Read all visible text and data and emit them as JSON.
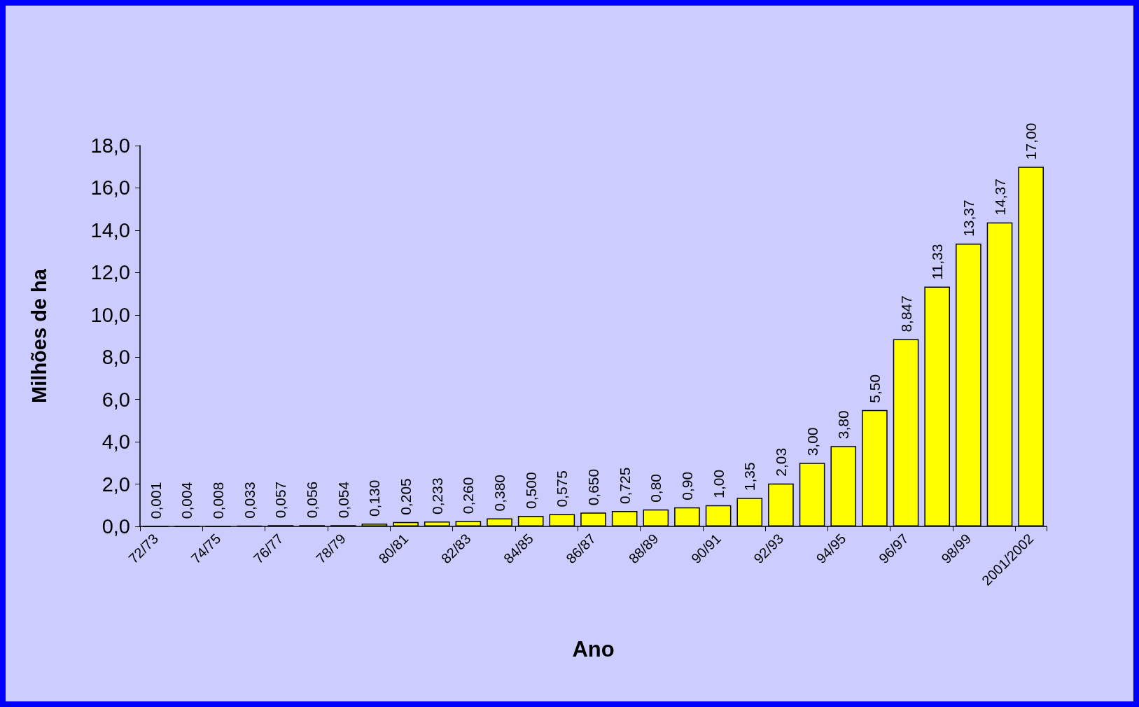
{
  "chart_data": {
    "type": "bar",
    "xlabel": "Ano",
    "ylabel": "Milhões de ha",
    "categories": [
      "72/73",
      null,
      "74/75",
      null,
      "76/77",
      null,
      "78/79",
      null,
      "80/81",
      null,
      "82/83",
      null,
      "84/85",
      null,
      "86/87",
      null,
      "88/89",
      null,
      "90/91",
      null,
      "92/93",
      null,
      "94/95",
      null,
      "96/97",
      null,
      "98/99",
      null,
      "2001/2002"
    ],
    "values": [
      0.001,
      0.004,
      0.008,
      0.033,
      0.057,
      0.056,
      0.054,
      0.13,
      0.205,
      0.233,
      0.26,
      0.38,
      0.5,
      0.575,
      0.65,
      0.725,
      0.8,
      0.9,
      1.0,
      1.35,
      2.03,
      3.0,
      3.8,
      5.5,
      8.847,
      11.33,
      13.37,
      14.37,
      17.0
    ],
    "value_labels": [
      "0,001",
      "0,004",
      "0,008",
      "0,033",
      "0,057",
      "0,056",
      "0,054",
      "0,130",
      "0,205",
      "0,233",
      "0,260",
      "0,380",
      "0,500",
      "0,575",
      "0,650",
      "0,725",
      "0,80",
      "0,90",
      "1,00",
      "1,35",
      "2,03",
      "3,00",
      "3,80",
      "5,50",
      "8,847",
      "11,33",
      "13,37",
      "14,37",
      "17,00"
    ],
    "color": "#ffff00",
    "ylim": [
      0,
      18
    ],
    "yticks": [
      {
        "value": 0,
        "label": "0,0"
      },
      {
        "value": 2,
        "label": "2,0"
      },
      {
        "value": 4,
        "label": "4,0"
      },
      {
        "value": 6,
        "label": "6,0"
      },
      {
        "value": 8,
        "label": "8,0"
      },
      {
        "value": 10,
        "label": "10,0"
      },
      {
        "value": 12,
        "label": "12,0"
      },
      {
        "value": 14,
        "label": "14,0"
      },
      {
        "value": 16,
        "label": "16,0"
      },
      {
        "value": 18,
        "label": "18,0"
      }
    ],
    "grid": false
  }
}
